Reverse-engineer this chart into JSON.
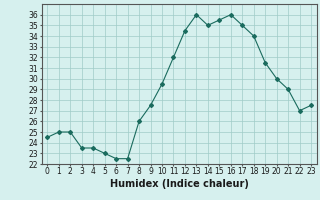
{
  "x": [
    0,
    1,
    2,
    3,
    4,
    5,
    6,
    7,
    8,
    9,
    10,
    11,
    12,
    13,
    14,
    15,
    16,
    17,
    18,
    19,
    20,
    21,
    22,
    23
  ],
  "y": [
    24.5,
    25.0,
    25.0,
    23.5,
    23.5,
    23.0,
    22.5,
    22.5,
    26.0,
    27.5,
    29.5,
    32.0,
    34.5,
    36.0,
    35.0,
    35.5,
    36.0,
    35.0,
    34.0,
    31.5,
    30.0,
    29.0,
    27.0,
    27.5
  ],
  "line_color": "#1a6b5e",
  "marker": "D",
  "marker_size": 2,
  "bg_color": "#d6f0ee",
  "grid_color": "#a0ccc8",
  "xlabel": "Humidex (Indice chaleur)",
  "ylabel": "",
  "ylim": [
    22,
    37
  ],
  "xlim": [
    -0.5,
    23.5
  ],
  "yticks": [
    22,
    23,
    24,
    25,
    26,
    27,
    28,
    29,
    30,
    31,
    32,
    33,
    34,
    35,
    36
  ],
  "xticks": [
    0,
    1,
    2,
    3,
    4,
    5,
    6,
    7,
    8,
    9,
    10,
    11,
    12,
    13,
    14,
    15,
    16,
    17,
    18,
    19,
    20,
    21,
    22,
    23
  ],
  "tick_fontsize": 5.5,
  "xlabel_fontsize": 7
}
